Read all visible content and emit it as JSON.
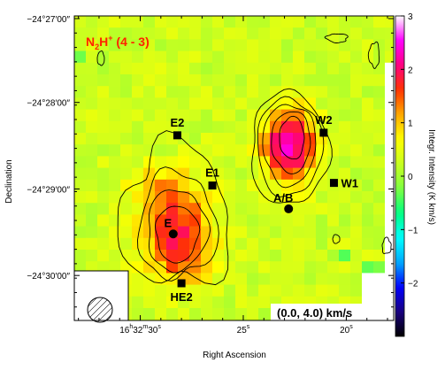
{
  "chart_data": {
    "type": "heatmap",
    "molecule": {
      "base": "N",
      "sub": "2",
      "mid": "H",
      "sup": "+",
      "transition": " (4 - 3)"
    },
    "velocity_range": "(0.0, 4.0) km/s",
    "xlabel": "Right Ascension",
    "ylabel": "Declination",
    "colorbar_label": "Integr. Intensity (K km/s)",
    "colorbar_range": [
      -3,
      3
    ],
    "colorbar_ticks": [
      "3",
      "2",
      "1",
      "0",
      "−1",
      "−2"
    ],
    "colorbar_tick_values": [
      3,
      2,
      1,
      0,
      -1,
      -2
    ],
    "colormap": [
      "#000000",
      "#1a0080",
      "#0000ff",
      "#00aaff",
      "#00ffff",
      "#00ff80",
      "#80ff40",
      "#c8ff20",
      "#ffff00",
      "#ffaa00",
      "#ff3300",
      "#ff0080",
      "#ff00ff",
      "#ffffff"
    ],
    "x_ticks": [
      {
        "value": 30,
        "label": "16ʰ32ᵐ30ˢ",
        "h": "16",
        "m": "32",
        "s": "30"
      },
      {
        "value": 25,
        "label": "25ˢ",
        "s": "25"
      },
      {
        "value": 20,
        "label": "20ˢ",
        "s": "20"
      }
    ],
    "y_ticks": [
      {
        "value": 0,
        "label": "−24°27′00″"
      },
      {
        "value": -1,
        "label": "−24°28′00″"
      },
      {
        "value": -2,
        "label": "−24°29′00″"
      },
      {
        "value": -3,
        "label": "−24°30′00″"
      }
    ],
    "x_range_s": [
      33.2,
      17.7
    ],
    "y_range_arcmin": [
      0,
      -3.52
    ],
    "sources": [
      {
        "name": "E2",
        "x": 28.2,
        "y": -1.38,
        "marker": "square",
        "label_pos": "above"
      },
      {
        "name": "W2",
        "x": 21.1,
        "y": -1.35,
        "marker": "square",
        "label_pos": "above"
      },
      {
        "name": "E1",
        "x": 26.5,
        "y": -1.96,
        "marker": "square",
        "label_pos": "above"
      },
      {
        "name": "W1",
        "x": 20.6,
        "y": -1.93,
        "marker": "square",
        "label_pos": "right"
      },
      {
        "name": "A/B",
        "x": 22.8,
        "y": -2.23,
        "marker": "circle",
        "label_pos": "above-left"
      },
      {
        "name": "E",
        "x": 28.4,
        "y": -2.52,
        "marker": "circle",
        "label_pos": "above-left"
      },
      {
        "name": "HE2",
        "x": 28.0,
        "y": -3.09,
        "marker": "square",
        "label_pos": "below"
      }
    ],
    "beam": "hatched-circle"
  }
}
